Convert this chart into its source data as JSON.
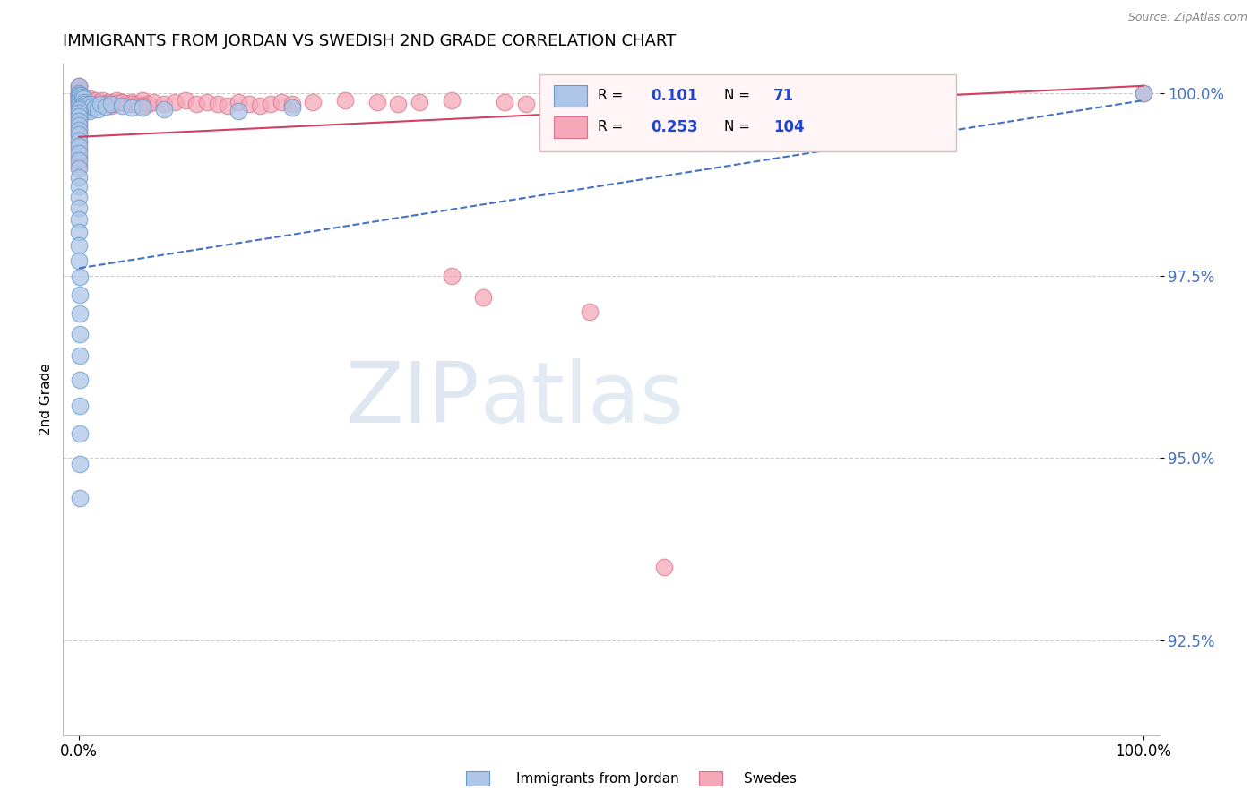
{
  "title": "IMMIGRANTS FROM JORDAN VS SWEDISH 2ND GRADE CORRELATION CHART",
  "source_text": "Source: ZipAtlas.com",
  "ylabel": "2nd Grade",
  "R_blue": 0.101,
  "N_blue": 71,
  "R_pink": 0.253,
  "N_pink": 104,
  "blue_color": "#aec6e8",
  "pink_color": "#f4a8b8",
  "blue_edge_color": "#6699cc",
  "pink_edge_color": "#e07090",
  "trendline_blue": "#4472c4",
  "trendline_pink": "#d04060",
  "legend_blue_label": "Immigrants from Jordan",
  "legend_pink_label": "Swedes",
  "watermark_zip": "ZIP",
  "watermark_atlas": "atlas",
  "ytick_values": [
    0.925,
    0.95,
    0.975,
    1.0
  ],
  "ylim": [
    0.912,
    1.004
  ],
  "xlim": [
    -0.015,
    1.015
  ]
}
